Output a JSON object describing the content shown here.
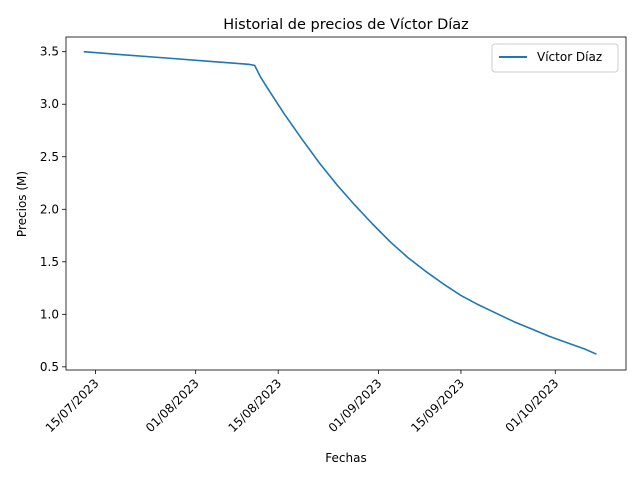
{
  "chart_data": {
    "type": "line",
    "title": "Historial de precios de Víctor Díaz",
    "xlabel": "Fechas",
    "ylabel": "Precios (M)",
    "x_ticks": [
      "2023-07-15",
      "2023-08-01",
      "2023-08-15",
      "2023-09-01",
      "2023-09-15",
      "2023-10-01"
    ],
    "x_tick_labels": [
      "15/07/2023",
      "01/08/2023",
      "15/08/2023",
      "01/09/2023",
      "15/09/2023",
      "01/10/2023"
    ],
    "y_ticks": [
      0.5,
      1.0,
      1.5,
      2.0,
      2.5,
      3.0,
      3.5
    ],
    "y_tick_labels": [
      "0.5",
      "1.0",
      "1.5",
      "2.0",
      "2.5",
      "3.0",
      "3.5"
    ],
    "xlim": [
      "2023-07-10",
      "2023-10-13"
    ],
    "ylim": [
      0.47,
      3.64
    ],
    "grid": false,
    "legend_position": "top-right",
    "series": [
      {
        "name": "Víctor Díaz",
        "color": "#1f77b4",
        "x": [
          "2023-07-13",
          "2023-07-20",
          "2023-07-27",
          "2023-08-03",
          "2023-08-10",
          "2023-08-11",
          "2023-08-12",
          "2023-08-13",
          "2023-08-16",
          "2023-08-19",
          "2023-08-22",
          "2023-08-25",
          "2023-08-28",
          "2023-08-31",
          "2023-09-03",
          "2023-09-06",
          "2023-09-09",
          "2023-09-12",
          "2023-09-15",
          "2023-09-18",
          "2023-09-21",
          "2023-09-24",
          "2023-09-27",
          "2023-09-30",
          "2023-10-03",
          "2023-10-06",
          "2023-10-08"
        ],
        "values": [
          3.5,
          3.47,
          3.44,
          3.41,
          3.38,
          3.37,
          3.26,
          3.17,
          2.91,
          2.67,
          2.44,
          2.23,
          2.04,
          1.86,
          1.69,
          1.54,
          1.41,
          1.29,
          1.18,
          1.09,
          1.01,
          0.93,
          0.86,
          0.79,
          0.73,
          0.67,
          0.62
        ]
      }
    ]
  }
}
